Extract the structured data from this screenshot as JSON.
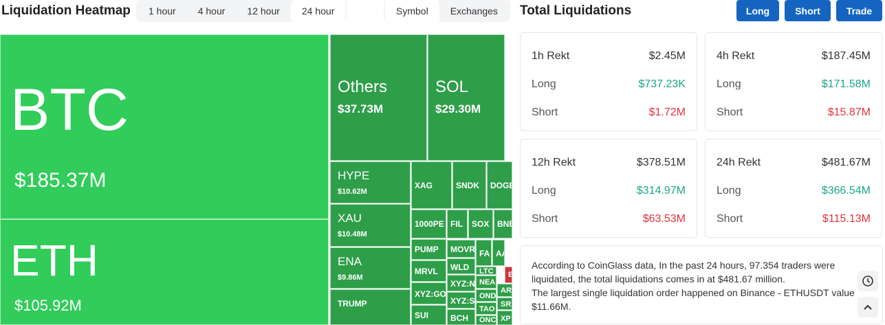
{
  "header": {
    "title": "Liquidation Heatmap",
    "time_tabs": [
      "1 hour",
      "4 hour",
      "12 hour",
      "24 hour"
    ],
    "view_tabs": [
      "Symbol",
      "Exchanges"
    ]
  },
  "heatmap": {
    "tiles": [
      {
        "symbol": "BTC",
        "value": "$185.37M",
        "color": "#31cc5a"
      },
      {
        "symbol": "ETH",
        "value": "$105.92M",
        "color": "#31cc5a"
      },
      {
        "symbol": "Others",
        "value": "$37.73M",
        "color": "#2e9e49"
      },
      {
        "symbol": "SOL",
        "value": "$29.30M",
        "color": "#2e9e49"
      },
      {
        "symbol": "HYPE",
        "value": "$10.62M",
        "color": "#2e9e49"
      },
      {
        "symbol": "XAU",
        "value": "$10.48M",
        "color": "#2e9e49"
      },
      {
        "symbol": "ENA",
        "value": "$9.86M",
        "color": "#2e9e49"
      },
      {
        "symbol": "TRUMP",
        "color": "#2e9e49"
      },
      {
        "symbol": "XAG",
        "color": "#2e9e49"
      },
      {
        "symbol": "SNDK",
        "color": "#2e9e49"
      },
      {
        "symbol": "DOGE",
        "color": "#2e9e49"
      },
      {
        "symbol": "1000PE",
        "color": "#2e9e49"
      },
      {
        "symbol": "FIL",
        "color": "#2e9e49"
      },
      {
        "symbol": "SOX",
        "color": "#2e9e49"
      },
      {
        "symbol": "BNB",
        "color": "#2e9e49"
      },
      {
        "symbol": "PUMP",
        "color": "#2e9e49"
      },
      {
        "symbol": "MOVR",
        "color": "#2e9e49"
      },
      {
        "symbol": "FA",
        "color": "#2e9e49"
      },
      {
        "symbol": "AA",
        "color": "#2e9e49"
      },
      {
        "symbol": "MRVL",
        "color": "#2e9e49"
      },
      {
        "symbol": "WLD",
        "color": "#2e9e49"
      },
      {
        "symbol": "LTC",
        "color": "#2e9e49"
      },
      {
        "symbol": "B",
        "color": "#c9383d"
      },
      {
        "symbol": "XYZ:GO",
        "color": "#2e9e49"
      },
      {
        "symbol": "XYZ:N",
        "color": "#2e9e49"
      },
      {
        "symbol": "NEA",
        "color": "#2e9e49"
      },
      {
        "symbol": "AR",
        "color": "#2e9e49"
      },
      {
        "symbol": "OND",
        "color": "#2e9e49"
      },
      {
        "symbol": "XYZ:S",
        "color": "#2e9e49"
      },
      {
        "symbol": "SR",
        "color": "#2e9e49"
      },
      {
        "symbol": "TAO",
        "color": "#2e9e49"
      },
      {
        "symbol": "SUI",
        "color": "#2e9e49"
      },
      {
        "symbol": "BCH",
        "color": "#2e9e49"
      },
      {
        "symbol": "ONC",
        "color": "#2e9e49"
      },
      {
        "symbol": "XP",
        "color": "#2e9e49"
      }
    ]
  },
  "summary": {
    "title": "Total Liquidations",
    "buttons": [
      "Long",
      "Short",
      "Trade"
    ],
    "cards": [
      {
        "title": "1h Rekt",
        "total": "$2.45M",
        "long_label": "Long",
        "long": "$737.23K",
        "short_label": "Short",
        "short": "$1.72M"
      },
      {
        "title": "4h Rekt",
        "total": "$187.45M",
        "long_label": "Long",
        "long": "$171.58M",
        "short_label": "Short",
        "short": "$15.87M"
      },
      {
        "title": "12h Rekt",
        "total": "$378.51M",
        "long_label": "Long",
        "long": "$314.97M",
        "short_label": "Short",
        "short": "$63.53M"
      },
      {
        "title": "24h Rekt",
        "total": "$481.67M",
        "long_label": "Long",
        "long": "$366.54M",
        "short_label": "Short",
        "short": "$115.13M"
      }
    ],
    "info": [
      "According to CoinGlass data, In the past 24 hours, 97.354 traders were liquidated, the total liquidations comes in at $481.67 million.",
      "The largest single liquidation order happened on Binance - ETHUSDT value $11.66M."
    ]
  }
}
